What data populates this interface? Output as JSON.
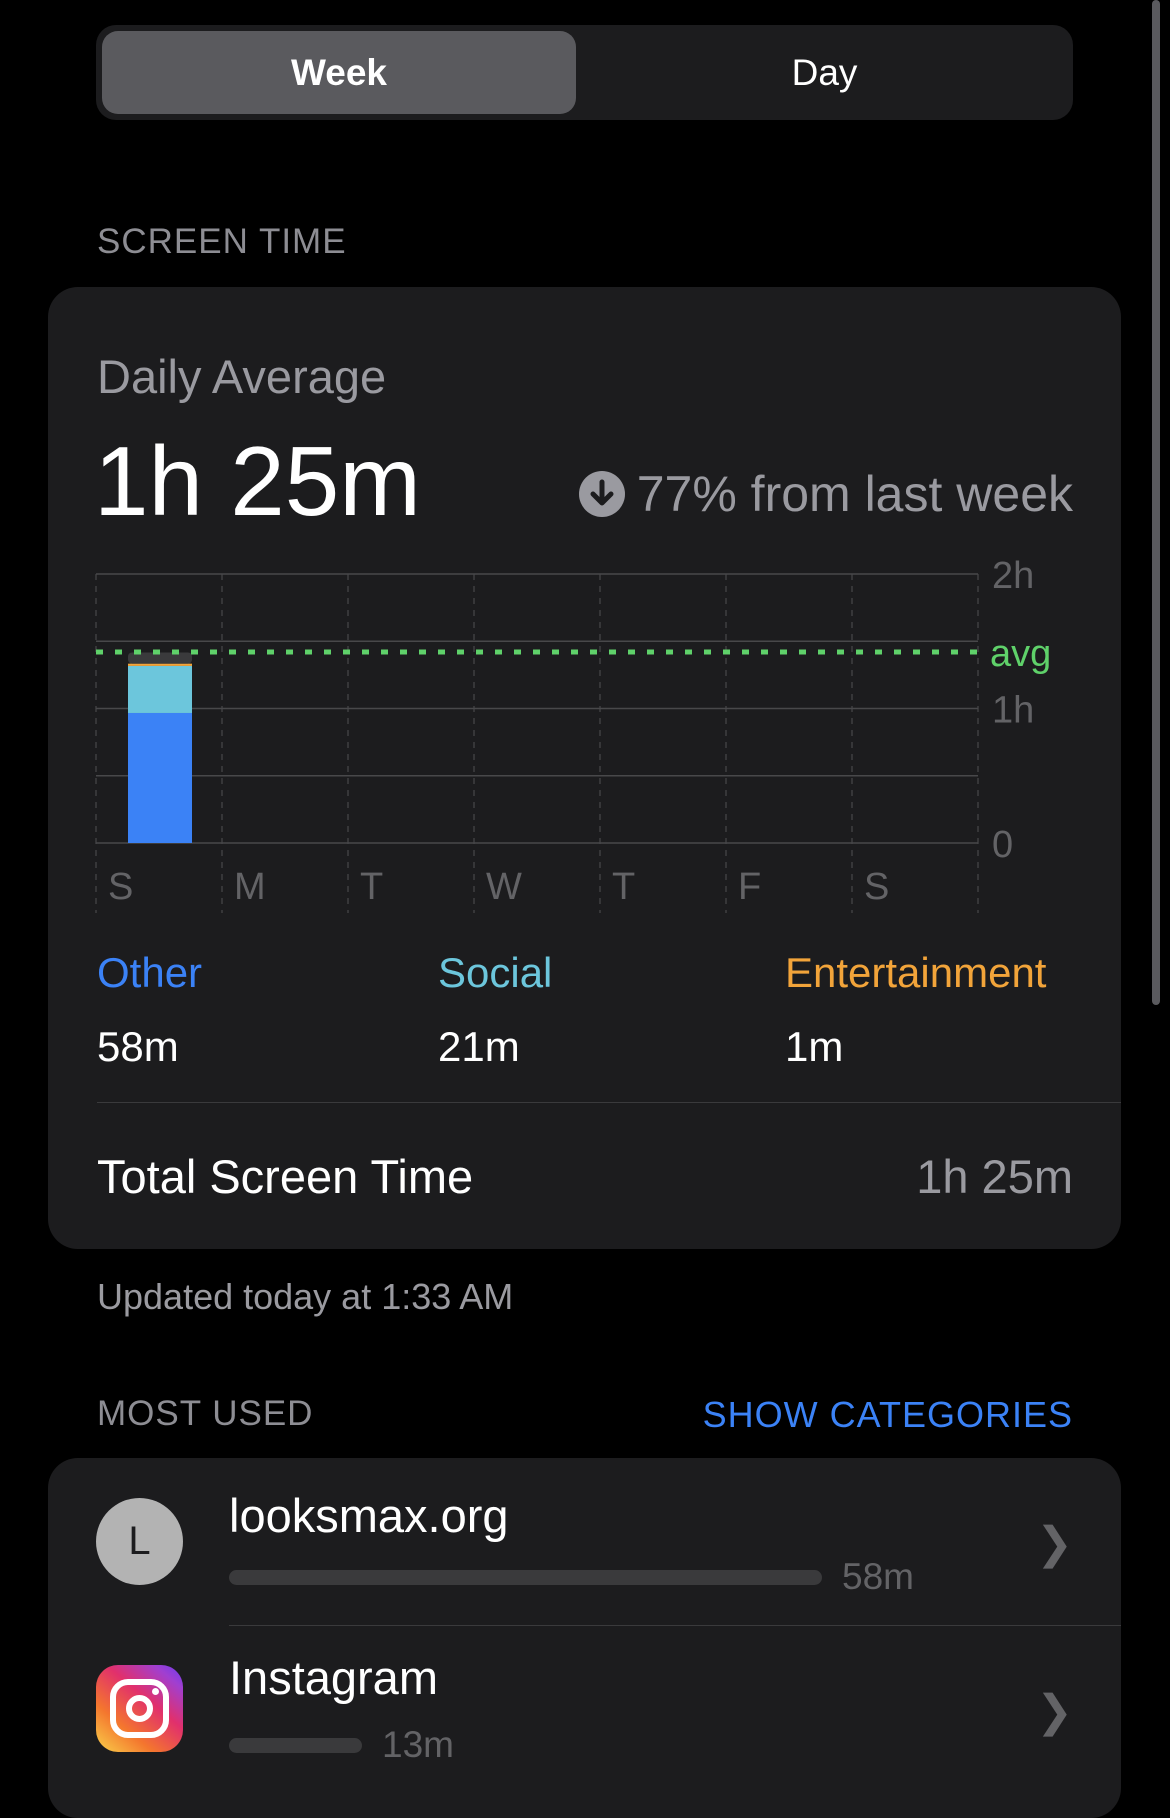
{
  "segments": {
    "week": "Week",
    "day": "Day",
    "selected": "Week"
  },
  "screen_time_header": "SCREEN TIME",
  "summary": {
    "label": "Daily Average",
    "value": "1h 25m",
    "change_icon": "arrow-down-circle-icon",
    "change": "77% from last week"
  },
  "chart_data": {
    "type": "bar",
    "stacked": true,
    "categories": [
      "S",
      "M",
      "T",
      "W",
      "T",
      "F",
      "S"
    ],
    "ylim": [
      0,
      2
    ],
    "yunit": "h",
    "yticks": [
      "2h",
      "1h",
      "0"
    ],
    "avg_label": "avg",
    "avg_hours": 1.42,
    "series": [
      {
        "name": "Other",
        "color": "#3b82f6",
        "values_min": [
          58,
          0,
          0,
          0,
          0,
          0,
          0
        ]
      },
      {
        "name": "Social",
        "color": "#6cc6dc",
        "values_min": [
          21,
          0,
          0,
          0,
          0,
          0,
          0
        ]
      },
      {
        "name": "Entertainment",
        "color": "#f2a43a",
        "values_min": [
          1,
          0,
          0,
          0,
          0,
          0,
          0
        ]
      },
      {
        "name": "",
        "color": "#3a3a3c",
        "values_min": [
          5,
          0,
          0,
          0,
          0,
          0,
          0
        ]
      }
    ],
    "avg_color": "#5fd16a"
  },
  "categories": [
    {
      "name": "Other",
      "value": "58m",
      "color": "#3b82f6"
    },
    {
      "name": "Social",
      "value": "21m",
      "color": "#6cc6dc"
    },
    {
      "name": "Entertainment",
      "value": "1m",
      "color": "#f2a43a"
    }
  ],
  "total": {
    "label": "Total Screen Time",
    "value": "1h 25m"
  },
  "updated": "Updated today at 1:33 AM",
  "most_used": {
    "header": "MOST USED",
    "link": "SHOW CATEGORIES",
    "apps": [
      {
        "name": "looksmax.org",
        "icon": "L",
        "time": "58m",
        "fraction": 1.0
      },
      {
        "name": "Instagram",
        "icon": "instagram-icon",
        "time": "13m",
        "fraction": 0.224
      }
    ]
  }
}
